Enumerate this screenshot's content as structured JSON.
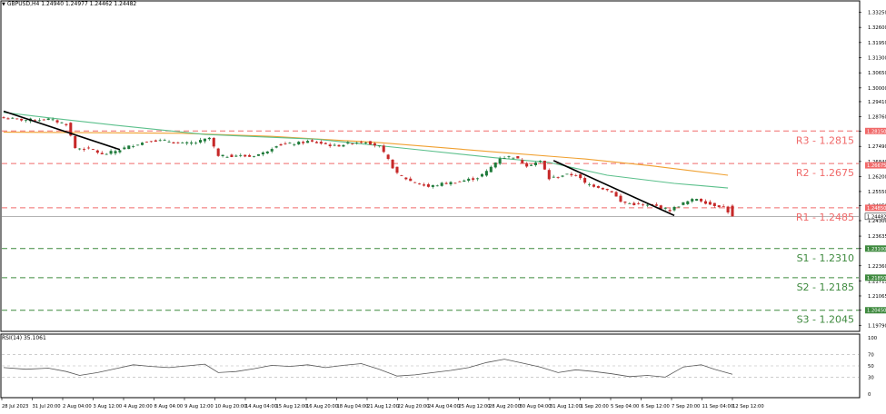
{
  "chart_header": {
    "symbol_tf": "GBPUSD,H4",
    "ohlc": "1.24940 1.24977 1.24462 1.24482"
  },
  "rsi_header": "RSI(14) 35.1061",
  "price_axis_labels": [
    "1.33250",
    "1.32600",
    "1.31950",
    "1.31300",
    "1.30650",
    "1.30000",
    "1.29410",
    "1.28760",
    "1.28150",
    "1.27490",
    "1.26840",
    "1.26200",
    "1.25550",
    "1.24950",
    "1.24300",
    "1.23635",
    "1.23100",
    "1.22360",
    "1.21715",
    "1.21065",
    "1.20450",
    "1.19790"
  ],
  "price_badges": [
    {
      "text": "1.28150",
      "kind": "res"
    },
    {
      "text": "1.26675",
      "kind": "res"
    },
    {
      "text": "1.24850",
      "kind": "res"
    },
    {
      "text": "1.24482",
      "kind": "cur"
    },
    {
      "text": "1.23100",
      "kind": "sup"
    },
    {
      "text": "1.21850",
      "kind": "sup"
    },
    {
      "text": "1.20450",
      "kind": "sup"
    }
  ],
  "level_labels": [
    {
      "text": "R3 - 1.2815",
      "kind": "res"
    },
    {
      "text": "R2 - 1.2675",
      "kind": "res"
    },
    {
      "text": "R1 - 1.2485",
      "kind": "res"
    },
    {
      "text": "S1 - 1.2310",
      "kind": "sup"
    },
    {
      "text": "S2 - 1.2185",
      "kind": "sup"
    },
    {
      "text": "S3 - 1.2045",
      "kind": "sup"
    }
  ],
  "rsi_axis_labels": [
    "100",
    "70",
    "50",
    "30",
    "0"
  ],
  "time_axis_labels": [
    "28 Jul 2023",
    "31 Jul 20:00",
    "2 Aug 04:00",
    "3 Aug 12:00",
    "4 Aug 20:00",
    "8 Aug 04:00",
    "9 Aug 12:00",
    "10 Aug 20:00",
    "14 Aug 04:00",
    "15 Aug 12:00",
    "16 Aug 20:00",
    "18 Aug 04:00",
    "21 Aug 12:00",
    "22 Aug 20:00",
    "24 Aug 04:00",
    "25 Aug 12:00",
    "28 Aug 20:00",
    "30 Aug 04:00",
    "31 Aug 12:00",
    "1 Sep 20:00",
    "5 Sep 04:00",
    "6 Sep 12:00",
    "7 Sep 20:00",
    "11 Sep 04:00",
    "12 Sep 12:00"
  ],
  "colors": {
    "resistance": "#f06a6a",
    "support": "#3f8a3f",
    "ma_fast": "#f0a030",
    "ma_slow": "#5cc08c",
    "bull": "#1e7a3a",
    "bear": "#c62828",
    "trendline": "#000000",
    "rsi_line": "#555555"
  },
  "chart_data": {
    "type": "candlestick",
    "symbol": "GBPUSD",
    "timeframe": "H4",
    "last_bar": {
      "open": 1.2494,
      "high": 1.24977,
      "low": 1.24462,
      "close": 1.24482
    },
    "price_range": [
      1.1966,
      1.3362
    ],
    "close_path": [
      {
        "t": 0,
        "p": 1.287
      },
      {
        "t": 5,
        "p": 1.2862
      },
      {
        "t": 10,
        "p": 1.2865
      },
      {
        "t": 14,
        "p": 1.2845
      },
      {
        "t": 16,
        "p": 1.2742
      },
      {
        "t": 20,
        "p": 1.2735
      },
      {
        "t": 22,
        "p": 1.2712
      },
      {
        "t": 26,
        "p": 1.2735
      },
      {
        "t": 29,
        "p": 1.2755
      },
      {
        "t": 33,
        "p": 1.2775
      },
      {
        "t": 37,
        "p": 1.277
      },
      {
        "t": 40,
        "p": 1.276
      },
      {
        "t": 43,
        "p": 1.2765
      },
      {
        "t": 46,
        "p": 1.2785
      },
      {
        "t": 48,
        "p": 1.2705
      },
      {
        "t": 52,
        "p": 1.271
      },
      {
        "t": 55,
        "p": 1.2705
      },
      {
        "t": 58,
        "p": 1.272
      },
      {
        "t": 61,
        "p": 1.2755
      },
      {
        "t": 65,
        "p": 1.276
      },
      {
        "t": 68,
        "p": 1.277
      },
      {
        "t": 71,
        "p": 1.2762
      },
      {
        "t": 74,
        "p": 1.275
      },
      {
        "t": 78,
        "p": 1.2765
      },
      {
        "t": 81,
        "p": 1.277
      },
      {
        "t": 84,
        "p": 1.2748
      },
      {
        "t": 86,
        "p": 1.269
      },
      {
        "t": 88,
        "p": 1.263
      },
      {
        "t": 91,
        "p": 1.26
      },
      {
        "t": 95,
        "p": 1.2575
      },
      {
        "t": 98,
        "p": 1.2588
      },
      {
        "t": 102,
        "p": 1.2598
      },
      {
        "t": 106,
        "p": 1.2615
      },
      {
        "t": 108,
        "p": 1.264
      },
      {
        "t": 111,
        "p": 1.27
      },
      {
        "t": 114,
        "p": 1.2705
      },
      {
        "t": 117,
        "p": 1.2668
      },
      {
        "t": 120,
        "p": 1.2685
      },
      {
        "t": 122,
        "p": 1.261
      },
      {
        "t": 125,
        "p": 1.2625
      },
      {
        "t": 128,
        "p": 1.2628
      },
      {
        "t": 130,
        "p": 1.259
      },
      {
        "t": 133,
        "p": 1.2575
      },
      {
        "t": 136,
        "p": 1.2555
      },
      {
        "t": 138,
        "p": 1.251
      },
      {
        "t": 142,
        "p": 1.2498
      },
      {
        "t": 146,
        "p": 1.2492
      },
      {
        "t": 149,
        "p": 1.2475
      },
      {
        "t": 152,
        "p": 1.2505
      },
      {
        "t": 155,
        "p": 1.2525
      },
      {
        "t": 158,
        "p": 1.25
      },
      {
        "t": 161,
        "p": 1.249
      },
      {
        "t": 163,
        "p": 1.24482
      }
    ],
    "moving_averages": [
      {
        "name": "MA fast",
        "points": [
          {
            "t": 0,
            "p": 1.281
          },
          {
            "t": 40,
            "p": 1.2805
          },
          {
            "t": 60,
            "p": 1.2792
          },
          {
            "t": 84,
            "p": 1.2765
          },
          {
            "t": 110,
            "p": 1.2725
          },
          {
            "t": 130,
            "p": 1.2695
          },
          {
            "t": 145,
            "p": 1.2665
          },
          {
            "t": 162,
            "p": 1.2625
          }
        ]
      },
      {
        "name": "MA slow",
        "points": [
          {
            "t": 0,
            "p": 1.2895
          },
          {
            "t": 10,
            "p": 1.2872
          },
          {
            "t": 25,
            "p": 1.284
          },
          {
            "t": 45,
            "p": 1.28
          },
          {
            "t": 70,
            "p": 1.278
          },
          {
            "t": 90,
            "p": 1.274
          },
          {
            "t": 110,
            "p": 1.27
          },
          {
            "t": 122,
            "p": 1.268
          },
          {
            "t": 135,
            "p": 1.2625
          },
          {
            "t": 150,
            "p": 1.259
          },
          {
            "t": 162,
            "p": 1.257
          }
        ]
      }
    ],
    "trendlines": [
      {
        "from": {
          "t": 0,
          "p": 1.29
        },
        "to": {
          "t": 26,
          "p": 1.2735
        }
      },
      {
        "from": {
          "t": 123,
          "p": 1.2688
        },
        "to": {
          "t": 150,
          "p": 1.2452
        }
      }
    ],
    "levels": [
      {
        "label": "R3",
        "value": 1.2815
      },
      {
        "label": "R2",
        "value": 1.2675
      },
      {
        "label": "R1",
        "value": 1.2485
      },
      {
        "label": "S1",
        "value": 1.231
      },
      {
        "label": "S2",
        "value": 1.2185
      },
      {
        "label": "S3",
        "value": 1.2045
      }
    ],
    "current_price": 1.24482,
    "rsi": {
      "period": 14,
      "last": 35.1061,
      "range": [
        0,
        100
      ],
      "levels": [
        70,
        50,
        30
      ],
      "points": [
        {
          "t": 0,
          "v": 47
        },
        {
          "t": 5,
          "v": 44
        },
        {
          "t": 10,
          "v": 46
        },
        {
          "t": 14,
          "v": 40
        },
        {
          "t": 17,
          "v": 33
        },
        {
          "t": 21,
          "v": 38
        },
        {
          "t": 25,
          "v": 45
        },
        {
          "t": 29,
          "v": 52
        },
        {
          "t": 33,
          "v": 49
        },
        {
          "t": 37,
          "v": 47
        },
        {
          "t": 41,
          "v": 50
        },
        {
          "t": 45,
          "v": 53
        },
        {
          "t": 48,
          "v": 38
        },
        {
          "t": 52,
          "v": 40
        },
        {
          "t": 56,
          "v": 45
        },
        {
          "t": 60,
          "v": 51
        },
        {
          "t": 64,
          "v": 49
        },
        {
          "t": 68,
          "v": 52
        },
        {
          "t": 72,
          "v": 47
        },
        {
          "t": 76,
          "v": 51
        },
        {
          "t": 80,
          "v": 54
        },
        {
          "t": 84,
          "v": 44
        },
        {
          "t": 88,
          "v": 32
        },
        {
          "t": 92,
          "v": 34
        },
        {
          "t": 96,
          "v": 38
        },
        {
          "t": 100,
          "v": 42
        },
        {
          "t": 104,
          "v": 47
        },
        {
          "t": 108,
          "v": 56
        },
        {
          "t": 112,
          "v": 62
        },
        {
          "t": 116,
          "v": 55
        },
        {
          "t": 120,
          "v": 48
        },
        {
          "t": 124,
          "v": 38
        },
        {
          "t": 128,
          "v": 43
        },
        {
          "t": 132,
          "v": 40
        },
        {
          "t": 136,
          "v": 36
        },
        {
          "t": 140,
          "v": 31
        },
        {
          "t": 144,
          "v": 33
        },
        {
          "t": 148,
          "v": 30
        },
        {
          "t": 152,
          "v": 48
        },
        {
          "t": 156,
          "v": 52
        },
        {
          "t": 159,
          "v": 44
        },
        {
          "t": 163,
          "v": 35.1
        }
      ]
    }
  }
}
